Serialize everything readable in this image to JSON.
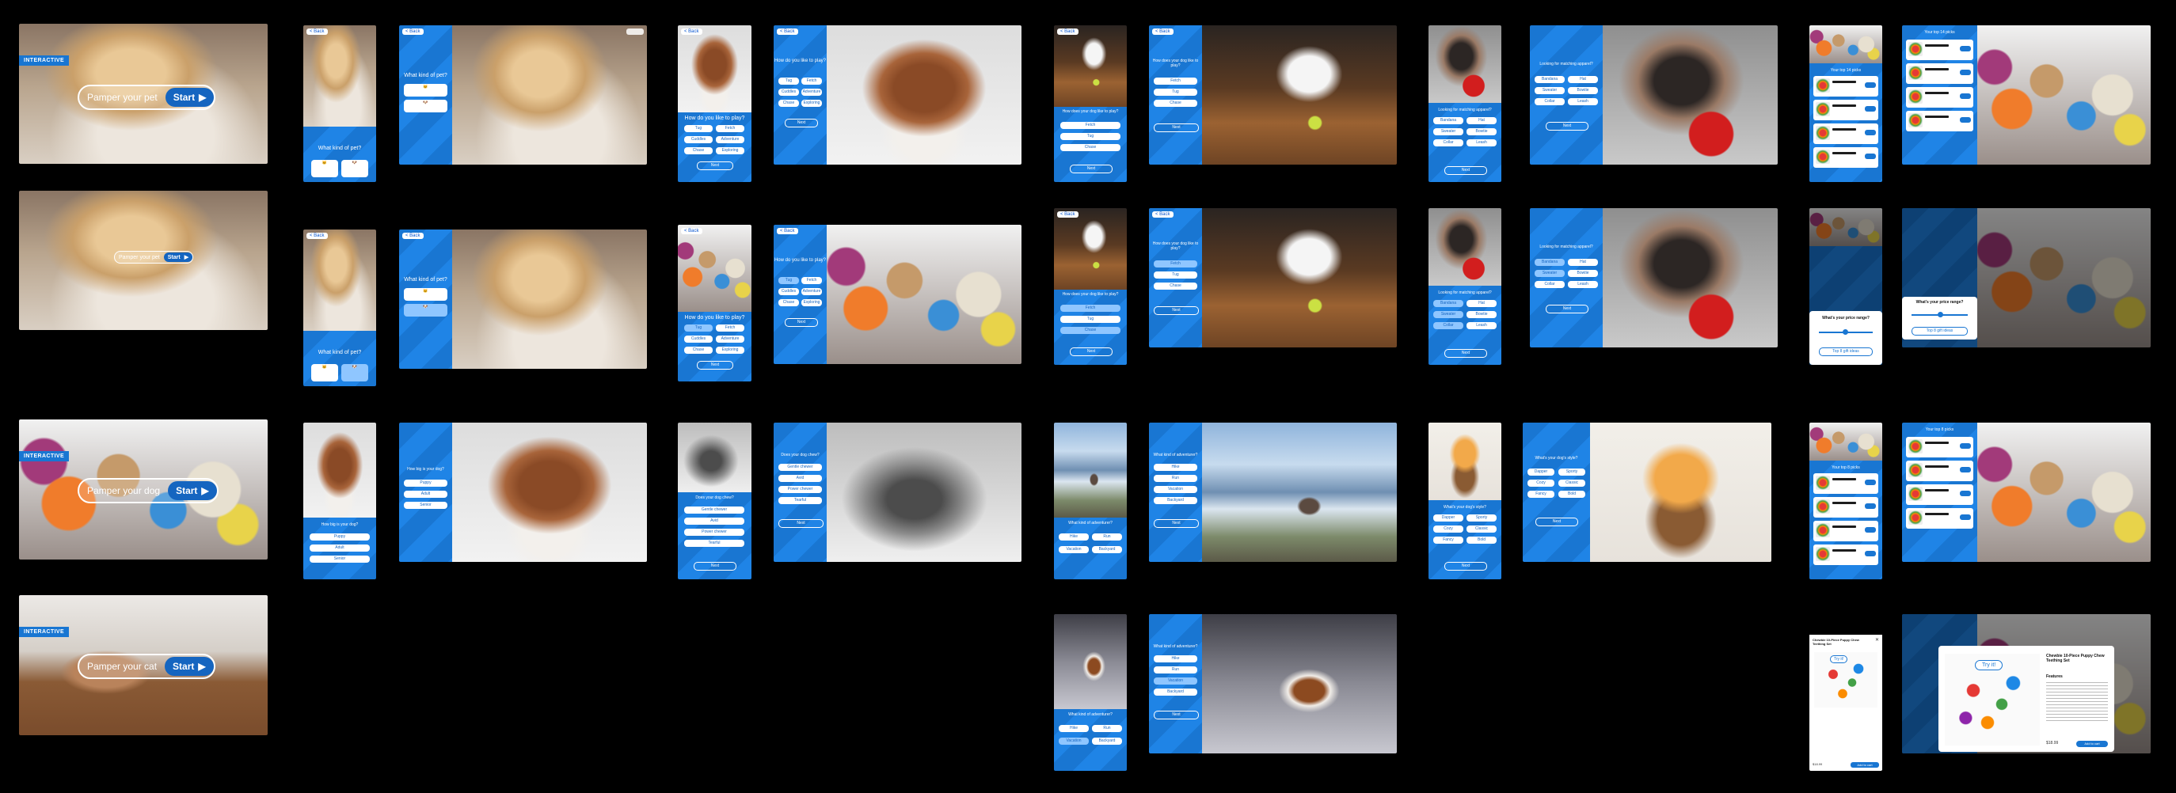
{
  "interactive_badge": "INTERACTIVE",
  "pill_pet": "Pamper your pet",
  "pill_dog": "Pamper your dog",
  "pill_cat": "Pamper your cat",
  "pill_small": "Pamper your pet",
  "start": "Start",
  "back": "< Back",
  "q_pet": "What kind of pet?",
  "q_size": "How big is your dog?",
  "opt_size": [
    "Puppy",
    "Adult",
    "Senior"
  ],
  "q_play": "How do you like to play?",
  "opt_play": [
    "Tug",
    "Fetch",
    "Cuddles",
    "Adventure",
    "Chase",
    "Exploring"
  ],
  "q_chew": "Does your dog chew?",
  "opt_chew": [
    "Gentle chewer",
    "Avid",
    "Power chewer",
    "Tearful"
  ],
  "q_dog_day": "How does your dog like to play?",
  "opt_dog_day": [
    "Fetch",
    "Tug",
    "Chase"
  ],
  "q_out": "What kind of adventurer?",
  "opt_out": [
    "Hike",
    "Run",
    "Vacation",
    "Backyard"
  ],
  "q_match": "Looking for matching apparel?",
  "opt_match": [
    "Bandana",
    "Hat",
    "Sweater",
    "Bowtie",
    "Collar",
    "Leash"
  ],
  "q_style": "What's your dog's style?",
  "opt_style": [
    "Dapper",
    "Sporty",
    "Cozy",
    "Classic",
    "Fancy",
    "Bold"
  ],
  "next": "Next",
  "top_picks": "Your top 14 picks",
  "top_picks_alt": "Your top 8 picks",
  "price_q": "What's your price range?",
  "price_btn": "Top 8 gift ideas",
  "modal_product": "Chewbie 10-Piece Puppy Chew Teething Set",
  "modal_try": "Try it!",
  "modal_features": "Features",
  "modal_price": "$18.99",
  "modal_add": "Add to cart"
}
